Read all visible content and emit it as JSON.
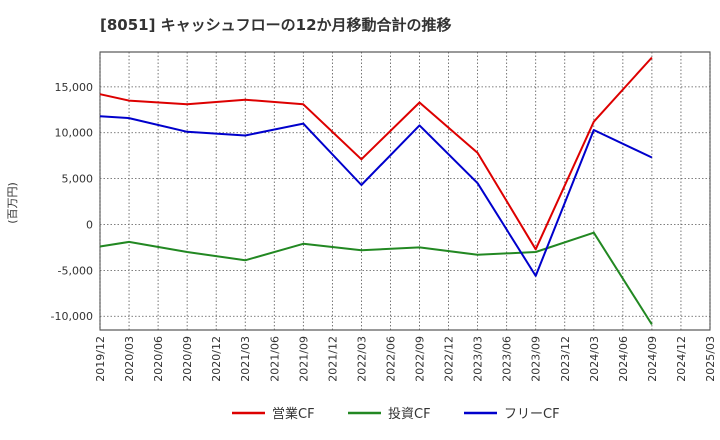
{
  "chart_data": {
    "type": "line",
    "title": "[8051]  キャッシュフローの12か月移動合計の推移",
    "ylabel": "(百万円)",
    "xlabel": "",
    "ylim": [
      -11500,
      18800
    ],
    "yticks": [
      -10000,
      -5000,
      0,
      5000,
      10000,
      15000
    ],
    "ytick_labels": [
      "-10,000",
      "-5,000",
      "0",
      "5,000",
      "10,000",
      "15,000"
    ],
    "categories": [
      "2019/12",
      "2020/03",
      "2020/06",
      "2020/09",
      "2020/12",
      "2021/03",
      "2021/06",
      "2021/09",
      "2021/12",
      "2022/03",
      "2022/06",
      "2022/09",
      "2022/12",
      "2023/03",
      "2023/06",
      "2023/09",
      "2023/12",
      "2024/03",
      "2024/06",
      "2024/09",
      "2024/12",
      "2025/03"
    ],
    "grid": true,
    "legend_position": "bottom",
    "series": [
      {
        "name": "営業CF",
        "color": "#dd0000",
        "values": [
          14200,
          13500,
          null,
          13100,
          null,
          13600,
          null,
          13100,
          null,
          7100,
          null,
          13300,
          null,
          7800,
          null,
          -2700,
          null,
          11200,
          null,
          18200,
          null,
          null
        ]
      },
      {
        "name": "投資CF",
        "color": "#228822",
        "values": [
          -2400,
          -1900,
          null,
          -3000,
          null,
          -3900,
          null,
          -2100,
          null,
          -2800,
          null,
          -2500,
          null,
          -3300,
          null,
          -3000,
          null,
          -900,
          null,
          -10900,
          null,
          null
        ]
      },
      {
        "name": "フリーCF",
        "color": "#0000cc",
        "values": [
          11800,
          11600,
          null,
          10100,
          null,
          9700,
          null,
          11000,
          null,
          4300,
          null,
          10800,
          null,
          4500,
          null,
          -5600,
          null,
          10300,
          null,
          7300,
          null,
          null
        ]
      }
    ]
  }
}
